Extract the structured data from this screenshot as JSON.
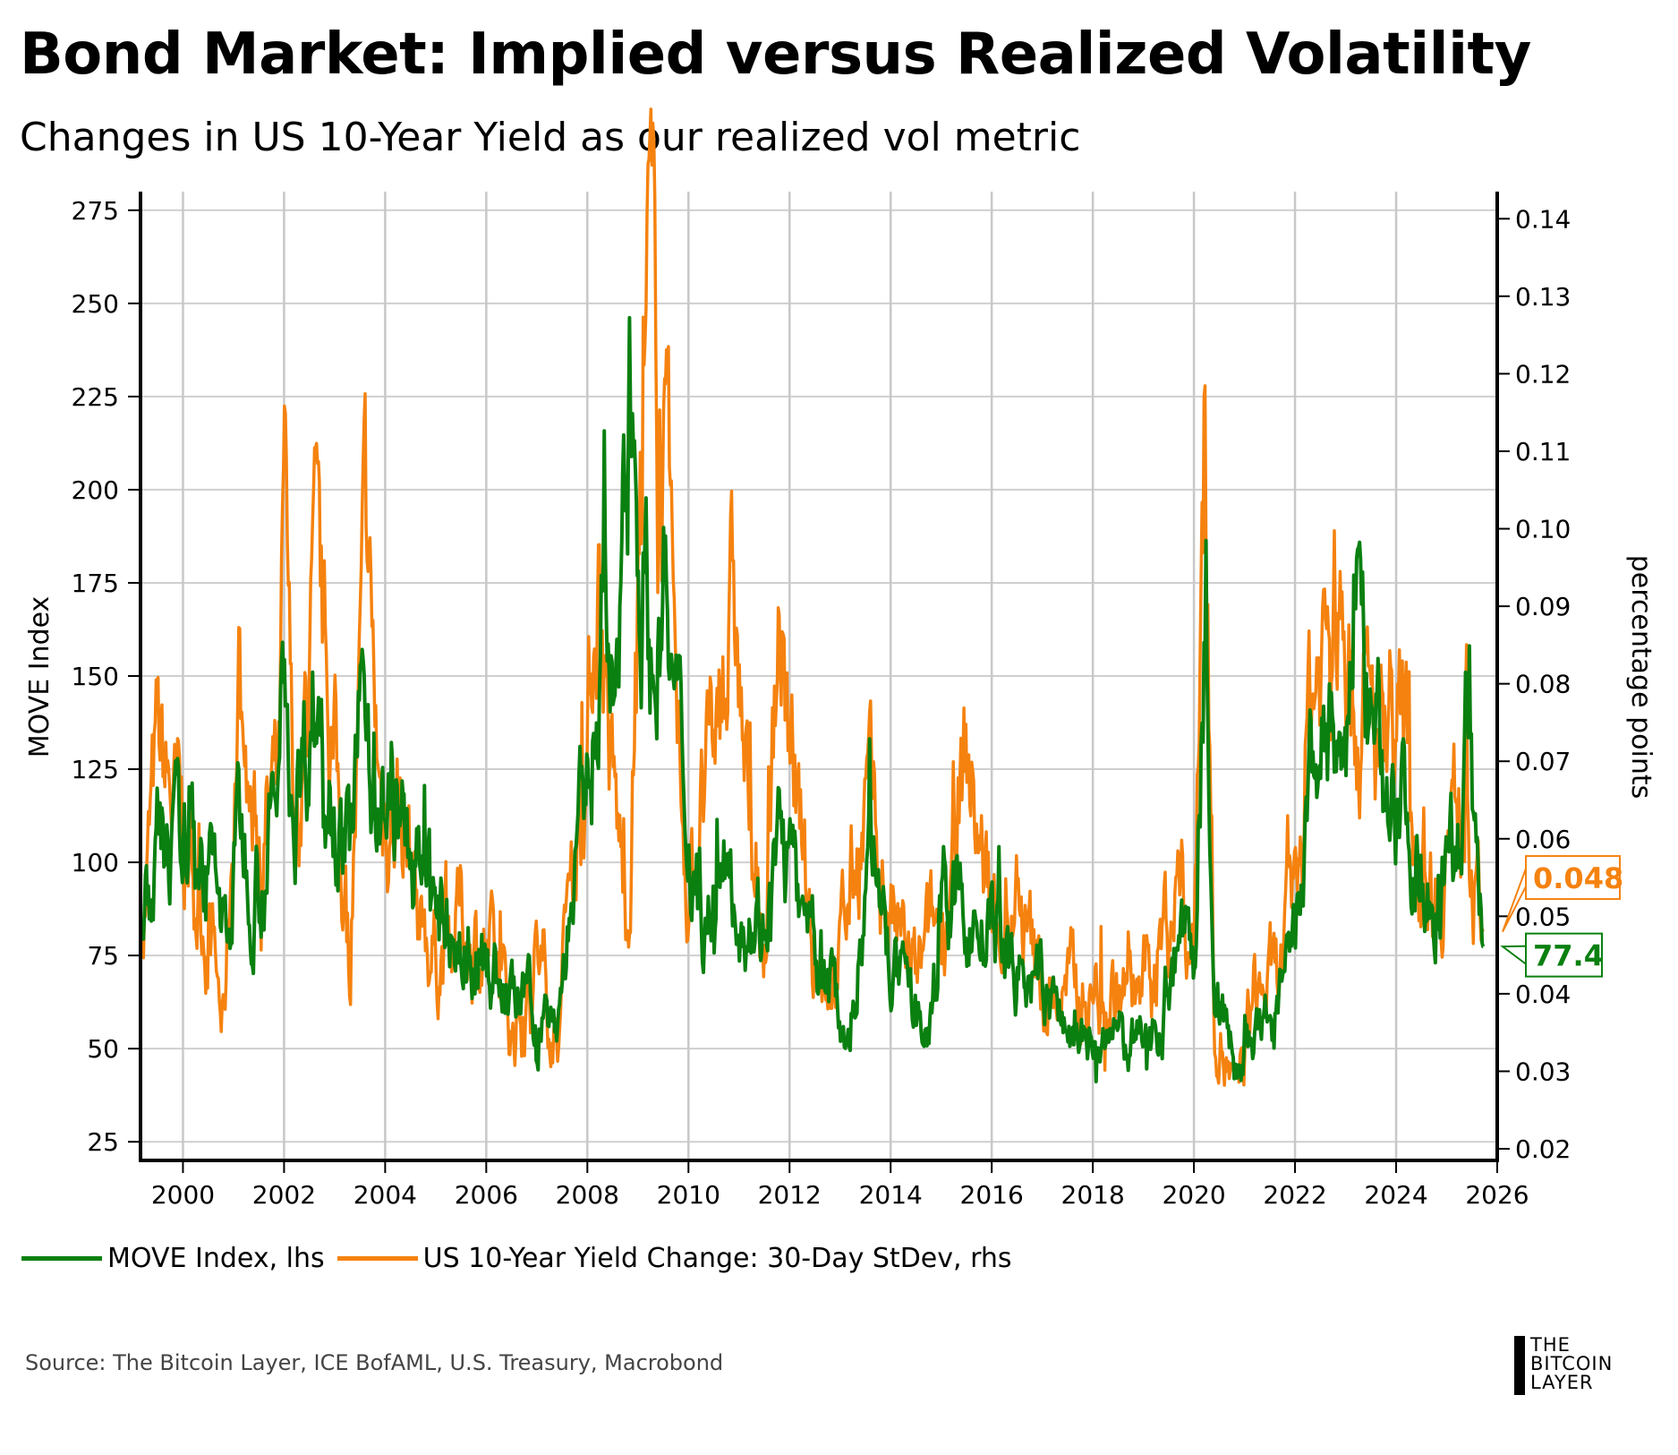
{
  "title": "Bond Market: Implied versus Realized Volatility",
  "subtitle": "Changes in US 10-Year Yield as our realized vol metric",
  "source": "Source: The Bitcoin Layer, ICE BofAML, U.S. Treasury, Macrobond",
  "logo": [
    "THE",
    "BITCOIN",
    "LAYER"
  ],
  "chart_data": {
    "type": "line",
    "title": "Bond Market: Implied versus Realized Volatility",
    "ylabel": "MOVE Index",
    "y2label": "percentage points",
    "xlim": [
      1999.16,
      2026
    ],
    "ylim": [
      20,
      280
    ],
    "y2lim": [
      0.0185,
      0.1435
    ],
    "xticks": [
      "2000",
      "2002",
      "2004",
      "2006",
      "2008",
      "2010",
      "2012",
      "2014",
      "2016",
      "2018",
      "2020",
      "2022",
      "2024",
      "2026"
    ],
    "yticks": [
      "25",
      "50",
      "75",
      "100",
      "125",
      "150",
      "175",
      "200",
      "225",
      "250",
      "275"
    ],
    "y2ticks": [
      "0.02",
      "0.03",
      "0.04",
      "0.05",
      "0.06",
      "0.07",
      "0.08",
      "0.09",
      "0.10",
      "0.11",
      "0.12",
      "0.13",
      "0.14"
    ],
    "grid": true,
    "legend_position": "bottom",
    "series": [
      {
        "name": "MOVE Index, lhs",
        "axis": "left",
        "color": "#0a8010",
        "last_label": "77.4",
        "points": [
          [
            1999.2,
            80
          ],
          [
            1999.5,
            105
          ],
          [
            2000,
            100
          ],
          [
            2000.3,
            110
          ],
          [
            2000.7,
            90
          ],
          [
            2000.9,
            80
          ],
          [
            2001.1,
            110
          ],
          [
            2001.5,
            100
          ],
          [
            2001.9,
            115
          ],
          [
            2002.0,
            160
          ],
          [
            2002.2,
            115
          ],
          [
            2002.6,
            148
          ],
          [
            2003.0,
            125
          ],
          [
            2003.3,
            100
          ],
          [
            2003.6,
            155
          ],
          [
            2003.8,
            120
          ],
          [
            2004.2,
            110
          ],
          [
            2004.6,
            100
          ],
          [
            2005,
            85
          ],
          [
            2005.5,
            78
          ],
          [
            2006,
            75
          ],
          [
            2006.5,
            62
          ],
          [
            2007,
            60
          ],
          [
            2007.4,
            57
          ],
          [
            2007.6,
            80
          ],
          [
            2008,
            120
          ],
          [
            2008.3,
            170
          ],
          [
            2008.6,
            130
          ],
          [
            2008.8,
            260
          ],
          [
            2009,
            200
          ],
          [
            2009.3,
            150
          ],
          [
            2009.5,
            175
          ],
          [
            2009.8,
            130
          ],
          [
            2010,
            110
          ],
          [
            2010.3,
            90
          ],
          [
            2010.6,
            85
          ],
          [
            2010.8,
            100
          ],
          [
            2011.2,
            90
          ],
          [
            2011.5,
            85
          ],
          [
            2011.8,
            105
          ],
          [
            2012,
            100
          ],
          [
            2012.3,
            75
          ],
          [
            2012.8,
            65
          ],
          [
            2013.2,
            55
          ],
          [
            2013.6,
            108
          ],
          [
            2013.9,
            80
          ],
          [
            2014.3,
            60
          ],
          [
            2014.8,
            55
          ],
          [
            2015.0,
            90
          ],
          [
            2015.5,
            85
          ],
          [
            2016,
            80
          ],
          [
            2016.5,
            70
          ],
          [
            2017,
            65
          ],
          [
            2017.5,
            55
          ],
          [
            2018,
            50
          ],
          [
            2018.5,
            52
          ],
          [
            2019,
            50
          ],
          [
            2019.5,
            65
          ],
          [
            2019.7,
            85
          ],
          [
            2020,
            70
          ],
          [
            2020.2,
            160
          ],
          [
            2020.4,
            70
          ],
          [
            2020.8,
            45
          ],
          [
            2021.2,
            50
          ],
          [
            2021.6,
            60
          ],
          [
            2022,
            75
          ],
          [
            2022.3,
            120
          ],
          [
            2022.7,
            140
          ],
          [
            2023.0,
            110
          ],
          [
            2023.2,
            195
          ],
          [
            2023.5,
            130
          ],
          [
            2023.9,
            125
          ],
          [
            2024.3,
            110
          ],
          [
            2024.6,
            95
          ],
          [
            2024.9,
            100
          ],
          [
            2025.3,
            110
          ],
          [
            2025.4,
            138
          ],
          [
            2025.6,
            90
          ],
          [
            2025.72,
            77.4
          ]
        ]
      },
      {
        "name": "US 10-Year Yield Change: 30-Day StDev, rhs",
        "axis": "right",
        "color": "#f5820f",
        "last_label": "0.048",
        "points": [
          [
            1999.2,
            0.05
          ],
          [
            1999.5,
            0.07
          ],
          [
            2000,
            0.06
          ],
          [
            2000.5,
            0.05
          ],
          [
            2000.8,
            0.035
          ],
          [
            2001.1,
            0.08
          ],
          [
            2001.4,
            0.06
          ],
          [
            2001.9,
            0.065
          ],
          [
            2002.0,
            0.1
          ],
          [
            2002.2,
            0.06
          ],
          [
            2002.6,
            0.09
          ],
          [
            2003.0,
            0.07
          ],
          [
            2003.3,
            0.045
          ],
          [
            2003.6,
            0.095
          ],
          [
            2003.9,
            0.065
          ],
          [
            2004.3,
            0.065
          ],
          [
            2004.7,
            0.05
          ],
          [
            2005.0,
            0.045
          ],
          [
            2005.5,
            0.05
          ],
          [
            2006,
            0.045
          ],
          [
            2006.5,
            0.035
          ],
          [
            2007,
            0.045
          ],
          [
            2007.4,
            0.035
          ],
          [
            2007.7,
            0.06
          ],
          [
            2008,
            0.07
          ],
          [
            2008.2,
            0.1
          ],
          [
            2008.5,
            0.065
          ],
          [
            2008.8,
            0.05
          ],
          [
            2009.0,
            0.09
          ],
          [
            2009.2,
            0.132
          ],
          [
            2009.5,
            0.11
          ],
          [
            2009.8,
            0.07
          ],
          [
            2010.0,
            0.055
          ],
          [
            2010.5,
            0.07
          ],
          [
            2010.9,
            0.09
          ],
          [
            2011.2,
            0.06
          ],
          [
            2011.5,
            0.045
          ],
          [
            2011.8,
            0.09
          ],
          [
            2012,
            0.07
          ],
          [
            2012.5,
            0.045
          ],
          [
            2013,
            0.045
          ],
          [
            2013.5,
            0.065
          ],
          [
            2014,
            0.05
          ],
          [
            2014.5,
            0.04
          ],
          [
            2015.0,
            0.05
          ],
          [
            2015.5,
            0.07
          ],
          [
            2016,
            0.05
          ],
          [
            2016.5,
            0.05
          ],
          [
            2017,
            0.04
          ],
          [
            2017.5,
            0.04
          ],
          [
            2018,
            0.04
          ],
          [
            2018.5,
            0.04
          ],
          [
            2019,
            0.04
          ],
          [
            2019.7,
            0.055
          ],
          [
            2020,
            0.045
          ],
          [
            2020.2,
            0.12
          ],
          [
            2020.4,
            0.04
          ],
          [
            2020.8,
            0.025
          ],
          [
            2021.2,
            0.04
          ],
          [
            2021.6,
            0.04
          ],
          [
            2022,
            0.05
          ],
          [
            2022.3,
            0.08
          ],
          [
            2022.8,
            0.09
          ],
          [
            2023.2,
            0.08
          ],
          [
            2023.6,
            0.07
          ],
          [
            2023.9,
            0.08
          ],
          [
            2024.3,
            0.065
          ],
          [
            2024.7,
            0.055
          ],
          [
            2025.3,
            0.065
          ],
          [
            2025.4,
            0.07
          ],
          [
            2025.6,
            0.05
          ],
          [
            2025.72,
            0.048
          ]
        ]
      }
    ]
  }
}
